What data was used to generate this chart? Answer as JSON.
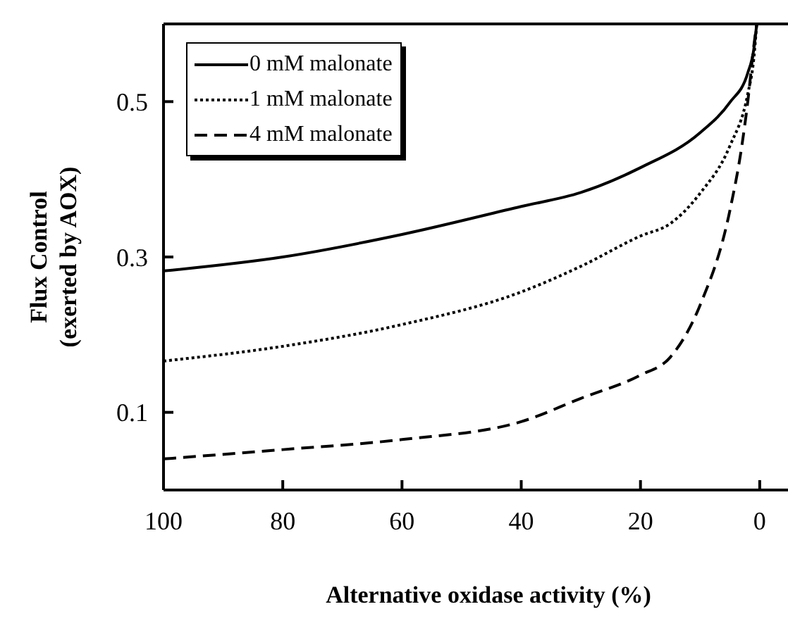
{
  "chart_data": {
    "type": "line",
    "xlabel": "Alternative oxidase activity (%)",
    "ylabel": "Flux Control\n(exerted by AOX)",
    "xlim": [
      100,
      -9
    ],
    "xticks": [
      100,
      80,
      60,
      40,
      20,
      0
    ],
    "ylim": [
      0,
      0.6
    ],
    "yticks": [
      0.1,
      0.3,
      0.5
    ],
    "legend": "top left",
    "marker": "none",
    "series": [
      {
        "name": "0 mM malonate",
        "color": "#000000",
        "line_style": "solid",
        "x": [
          100,
          80,
          60,
          40,
          30,
          20,
          10,
          5,
          2,
          1,
          0.5
        ],
        "values": [
          0.282,
          0.3,
          0.329,
          0.365,
          0.383,
          0.415,
          0.46,
          0.499,
          0.537,
          0.567,
          0.6
        ]
      },
      {
        "name": "1 mM malonate",
        "color": "#000000",
        "line_style": "dotted",
        "x": [
          100,
          80,
          60,
          40,
          30,
          20,
          15,
          10,
          5,
          2,
          1,
          0.5
        ],
        "values": [
          0.166,
          0.185,
          0.213,
          0.255,
          0.288,
          0.327,
          0.343,
          0.382,
          0.443,
          0.51,
          0.555,
          0.6
        ]
      },
      {
        "name": "4 mM malonate",
        "color": "#000000",
        "line_style": "dashed",
        "x": [
          100,
          80,
          60,
          40,
          30,
          20,
          15,
          10,
          5,
          3,
          2,
          1,
          0.5
        ],
        "values": [
          0.04,
          0.052,
          0.065,
          0.088,
          0.118,
          0.148,
          0.171,
          0.238,
          0.36,
          0.443,
          0.5,
          0.571,
          0.6
        ]
      }
    ]
  }
}
